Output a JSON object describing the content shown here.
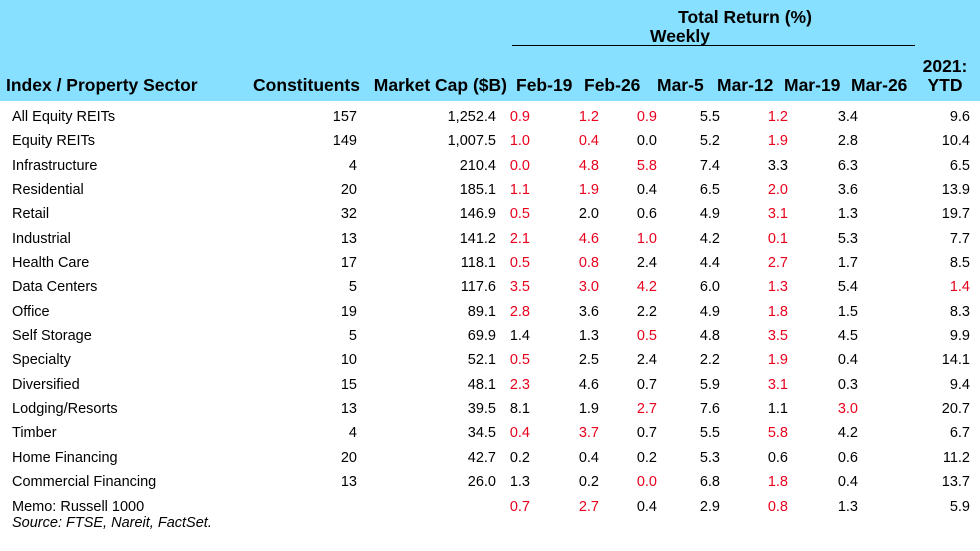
{
  "header": {
    "group_title": "Total Return (%)",
    "group_subtitle": "Weekly",
    "columns": {
      "sector": "Index / Property Sector",
      "constituents": "Constituents",
      "market_cap": "Market Cap ($B)",
      "weeks": [
        "Feb-19",
        "Feb-26",
        "Mar-5",
        "Mar-12",
        "Mar-19",
        "Mar-26"
      ],
      "ytd_line1": "2021:",
      "ytd_line2": "YTD"
    }
  },
  "colors": {
    "header_bg": "#87e0ff",
    "negative_red": "#e8001c"
  },
  "rows": [
    {
      "name": "All Equity REITs",
      "constituents": "157",
      "market_cap": "1,252.4",
      "weekly": [
        "0.9",
        "1.2",
        "0.9",
        "5.5",
        "1.2",
        "3.4"
      ],
      "ytd": "9.6",
      "red": [
        true,
        true,
        true,
        false,
        true,
        false,
        false
      ]
    },
    {
      "name": "Equity REITs",
      "constituents": "149",
      "market_cap": "1,007.5",
      "weekly": [
        "1.0",
        "0.4",
        "0.0",
        "5.2",
        "1.9",
        "2.8"
      ],
      "ytd": "10.4",
      "red": [
        true,
        true,
        false,
        false,
        true,
        false,
        false
      ]
    },
    {
      "name": "Infrastructure",
      "constituents": "4",
      "market_cap": "210.4",
      "weekly": [
        "0.0",
        "4.8",
        "5.8",
        "7.4",
        "3.3",
        "6.3"
      ],
      "ytd": "6.5",
      "red": [
        true,
        true,
        true,
        false,
        false,
        false,
        false
      ]
    },
    {
      "name": "Residential",
      "constituents": "20",
      "market_cap": "185.1",
      "weekly": [
        "1.1",
        "1.9",
        "0.4",
        "6.5",
        "2.0",
        "3.6"
      ],
      "ytd": "13.9",
      "red": [
        true,
        true,
        false,
        false,
        true,
        false,
        false
      ]
    },
    {
      "name": "Retail",
      "constituents": "32",
      "market_cap": "146.9",
      "weekly": [
        "0.5",
        "2.0",
        "0.6",
        "4.9",
        "3.1",
        "1.3"
      ],
      "ytd": "19.7",
      "red": [
        true,
        false,
        false,
        false,
        true,
        false,
        false
      ]
    },
    {
      "name": "Industrial",
      "constituents": "13",
      "market_cap": "141.2",
      "weekly": [
        "2.1",
        "4.6",
        "1.0",
        "4.2",
        "0.1",
        "5.3"
      ],
      "ytd": "7.7",
      "red": [
        true,
        true,
        true,
        false,
        true,
        false,
        false
      ]
    },
    {
      "name": "Health Care",
      "constituents": "17",
      "market_cap": "118.1",
      "weekly": [
        "0.5",
        "0.8",
        "2.4",
        "4.4",
        "2.7",
        "1.7"
      ],
      "ytd": "8.5",
      "red": [
        true,
        true,
        false,
        false,
        true,
        false,
        false
      ]
    },
    {
      "name": "Data Centers",
      "constituents": "5",
      "market_cap": "117.6",
      "weekly": [
        "3.5",
        "3.0",
        "4.2",
        "6.0",
        "1.3",
        "5.4"
      ],
      "ytd": "1.4",
      "red": [
        true,
        true,
        true,
        false,
        true,
        false,
        true
      ]
    },
    {
      "name": "Office",
      "constituents": "19",
      "market_cap": "89.1",
      "weekly": [
        "2.8",
        "3.6",
        "2.2",
        "4.9",
        "1.8",
        "1.5"
      ],
      "ytd": "8.3",
      "red": [
        true,
        false,
        false,
        false,
        true,
        false,
        false
      ]
    },
    {
      "name": "Self Storage",
      "constituents": "5",
      "market_cap": "69.9",
      "weekly": [
        "1.4",
        "1.3",
        "0.5",
        "4.8",
        "3.5",
        "4.5"
      ],
      "ytd": "9.9",
      "red": [
        false,
        false,
        true,
        false,
        true,
        false,
        false
      ]
    },
    {
      "name": "Specialty",
      "constituents": "10",
      "market_cap": "52.1",
      "weekly": [
        "0.5",
        "2.5",
        "2.4",
        "2.2",
        "1.9",
        "0.4"
      ],
      "ytd": "14.1",
      "red": [
        true,
        false,
        false,
        false,
        true,
        false,
        false
      ]
    },
    {
      "name": "Diversified",
      "constituents": "15",
      "market_cap": "48.1",
      "weekly": [
        "2.3",
        "4.6",
        "0.7",
        "5.9",
        "3.1",
        "0.3"
      ],
      "ytd": "9.4",
      "red": [
        true,
        false,
        false,
        false,
        true,
        false,
        false
      ]
    },
    {
      "name": "Lodging/Resorts",
      "constituents": "13",
      "market_cap": "39.5",
      "weekly": [
        "8.1",
        "1.9",
        "2.7",
        "7.6",
        "1.1",
        "3.0"
      ],
      "ytd": "20.7",
      "red": [
        false,
        false,
        true,
        false,
        false,
        true,
        false
      ]
    },
    {
      "name": "Timber",
      "constituents": "4",
      "market_cap": "34.5",
      "weekly": [
        "0.4",
        "3.7",
        "0.7",
        "5.5",
        "5.8",
        "4.2"
      ],
      "ytd": "6.7",
      "red": [
        true,
        true,
        false,
        false,
        true,
        false,
        false
      ]
    },
    {
      "name": "Home Financing",
      "constituents": "20",
      "market_cap": "42.7",
      "weekly": [
        "0.2",
        "0.4",
        "0.2",
        "5.3",
        "0.6",
        "0.6"
      ],
      "ytd": "11.2",
      "red": [
        false,
        false,
        false,
        false,
        false,
        false,
        false
      ]
    },
    {
      "name": "Commercial Financing",
      "constituents": "13",
      "market_cap": "26.0",
      "weekly": [
        "1.3",
        "0.2",
        "0.0",
        "6.8",
        "1.8",
        "0.4"
      ],
      "ytd": "13.7",
      "red": [
        false,
        false,
        true,
        false,
        true,
        false,
        false
      ]
    },
    {
      "name": "Memo: Russell 1000",
      "constituents": "",
      "market_cap": "",
      "weekly": [
        "0.7",
        "2.7",
        "0.4",
        "2.9",
        "0.8",
        "1.3"
      ],
      "ytd": "5.9",
      "red": [
        true,
        true,
        false,
        false,
        true,
        false,
        false
      ]
    }
  ],
  "source": "Source: FTSE, Nareit, FactSet."
}
